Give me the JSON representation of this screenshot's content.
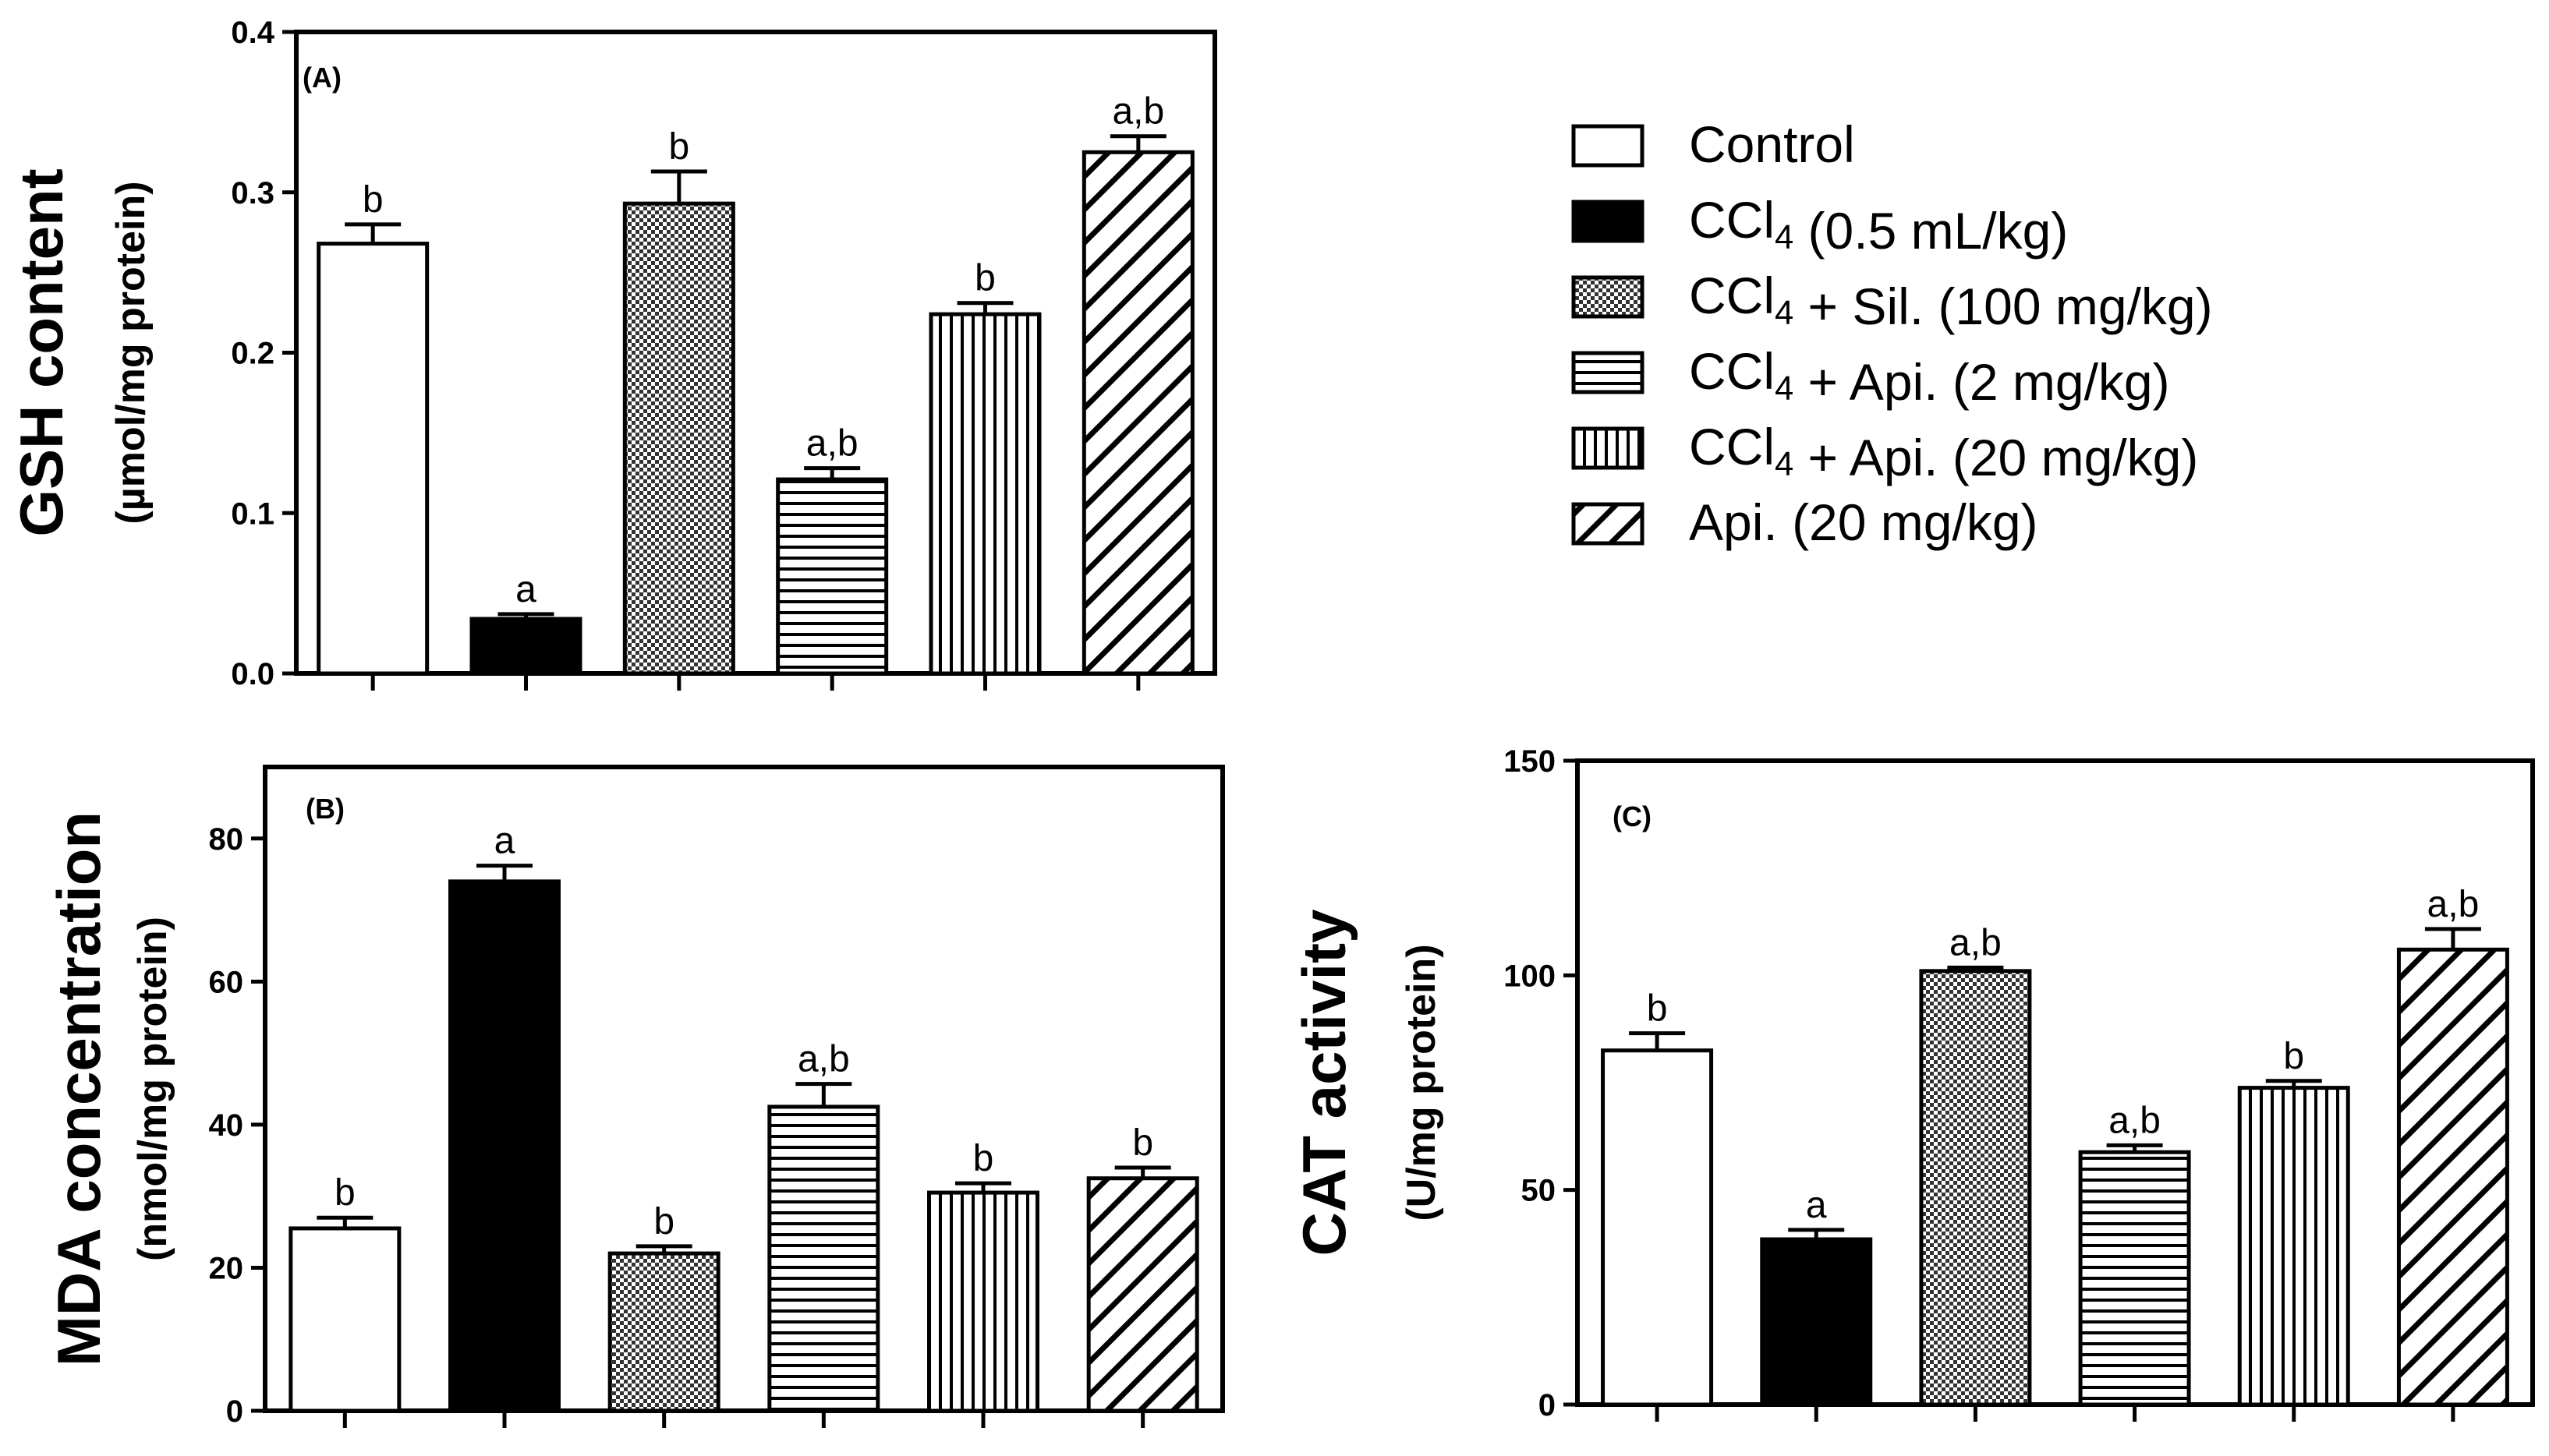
{
  "legend": {
    "items": [
      {
        "pattern": "white",
        "label": "Control"
      },
      {
        "pattern": "black",
        "label": "CCl4 (0.5 mL/kg)"
      },
      {
        "pattern": "checker",
        "label": "CCl4 + Sil. (100 mg/kg)"
      },
      {
        "pattern": "hlines",
        "label": "CCl4 + Api. (2 mg/kg)"
      },
      {
        "pattern": "vlines",
        "label": "CCl4 + Api. (20 mg/kg)"
      },
      {
        "pattern": "diag",
        "label": "Api. (20 mg/kg)"
      }
    ]
  },
  "chart_data": [
    {
      "type": "bar",
      "panel_label": "(A)",
      "ylabel": "GSH content",
      "yunit": "(µmol/mg protein)",
      "ylim": [
        0,
        0.4
      ],
      "yticks": [
        "0.0",
        "0.1",
        "0.2",
        "0.3",
        "0.4"
      ],
      "yticks_values": [
        0,
        0.1,
        0.2,
        0.3,
        0.4
      ],
      "categories": [
        "Control",
        "CCl4 (0.5 mL/kg)",
        "CCl4 + Sil. (100 mg/kg)",
        "CCl4 + Api. (2 mg/kg)",
        "CCl4 + Api. (20 mg/kg)",
        "Api. (20 mg/kg)"
      ],
      "values": [
        0.268,
        0.034,
        0.293,
        0.121,
        0.224,
        0.325
      ],
      "errors": [
        0.012,
        0.003,
        0.02,
        0.007,
        0.007,
        0.01
      ],
      "annotations": [
        "b",
        "a",
        "b",
        "a,b",
        "b",
        "a,b"
      ]
    },
    {
      "type": "bar",
      "panel_label": "(B)",
      "ylabel": "MDA concentration",
      "yunit": "(nmol/mg protein)",
      "ylim": [
        0,
        90
      ],
      "yticks": [
        "0",
        "20",
        "40",
        "60",
        "80"
      ],
      "yticks_values": [
        0,
        20,
        40,
        60,
        80
      ],
      "categories": [
        "Control",
        "CCl4 (0.5 mL/kg)",
        "CCl4 + Sil. (100 mg/kg)",
        "CCl4 + Api. (2 mg/kg)",
        "CCl4 + Api. (20 mg/kg)",
        "Api. (20 mg/kg)"
      ],
      "values": [
        25.5,
        74.0,
        22.0,
        42.5,
        30.5,
        32.5
      ],
      "errors": [
        1.5,
        2.2,
        1.0,
        3.2,
        1.3,
        1.5
      ],
      "annotations": [
        "b",
        "a",
        "b",
        "a,b",
        "b",
        "b"
      ]
    },
    {
      "type": "bar",
      "panel_label": "(C)",
      "ylabel": "CAT activity",
      "yunit": "(U/mg protein)",
      "ylim": [
        0,
        150
      ],
      "yticks": [
        "0",
        "50",
        "100",
        "150"
      ],
      "yticks_values": [
        0,
        50,
        100,
        150
      ],
      "categories": [
        "Control",
        "CCl4 (0.5 mL/kg)",
        "CCl4 + Sil. (100 mg/kg)",
        "CCl4 + Api. (2 mg/kg)",
        "CCl4 + Api. (20 mg/kg)",
        "Api. (20 mg/kg)"
      ],
      "values": [
        82.5,
        38.5,
        101.0,
        58.8,
        73.8,
        106.0
      ],
      "errors": [
        4.0,
        2.2,
        0.8,
        1.6,
        1.6,
        4.8
      ],
      "annotations": [
        "b",
        "a",
        "a,b",
        "a,b",
        "b",
        "a,b"
      ]
    }
  ]
}
